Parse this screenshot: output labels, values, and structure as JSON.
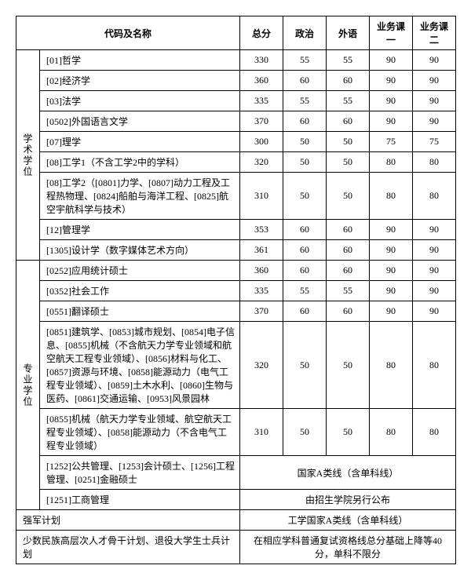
{
  "columns": {
    "code": "代码及名称",
    "total": "总分",
    "politics": "政治",
    "foreign": "外语",
    "course1": "业务课一",
    "course2": "业务课二"
  },
  "groups": {
    "academic": "学术学位",
    "professional": "专业学位"
  },
  "academic_rows": [
    {
      "code": "[01]哲学",
      "t": "330",
      "p": "55",
      "f": "55",
      "c1": "90",
      "c2": "90"
    },
    {
      "code": "[02]经济学",
      "t": "360",
      "p": "60",
      "f": "60",
      "c1": "90",
      "c2": "90"
    },
    {
      "code": "[03]法学",
      "t": "335",
      "p": "55",
      "f": "55",
      "c1": "90",
      "c2": "90"
    },
    {
      "code": "[0502]外国语言文学",
      "t": "370",
      "p": "60",
      "f": "60",
      "c1": "90",
      "c2": "90"
    },
    {
      "code": "[07]理学",
      "t": "300",
      "p": "50",
      "f": "50",
      "c1": "75",
      "c2": "75"
    },
    {
      "code": "[08]工学1（不含工学2中的学科）",
      "t": "320",
      "p": "50",
      "f": "50",
      "c1": "80",
      "c2": "80"
    },
    {
      "code": "[08]工学2（[0801]力学、[0807]动力工程及工程热物理、[0824]船舶与海洋工程、[0825]航空宇航科学与技术）",
      "t": "310",
      "p": "50",
      "f": "50",
      "c1": "80",
      "c2": "80"
    },
    {
      "code": "[12]管理学",
      "t": "353",
      "p": "60",
      "f": "60",
      "c1": "90",
      "c2": "90"
    },
    {
      "code": "[1305]设计学（数字媒体艺术方向）",
      "t": "361",
      "p": "60",
      "f": "60",
      "c1": "90",
      "c2": "90"
    }
  ],
  "professional_rows": [
    {
      "code": "[0252]应用统计硕士",
      "t": "360",
      "p": "60",
      "f": "60",
      "c1": "90",
      "c2": "90"
    },
    {
      "code": "[0352]社会工作",
      "t": "335",
      "p": "55",
      "f": "55",
      "c1": "90",
      "c2": "90"
    },
    {
      "code": "[0551]翻译硕士",
      "t": "370",
      "p": "60",
      "f": "60",
      "c1": "90",
      "c2": "90"
    },
    {
      "code": "[0851]建筑学、[0853]城市规划、[0854]电子信息、[0855]机械（不含航天力学专业领域和航空航天工程专业领域）、[0856]材料与化工、[0857]资源与环境、[0858]能源动力（电气工程专业领域）、[0859]土木水利、[0860]生物与医药、[0861]交通运输、[0953]风景园林",
      "t": "320",
      "p": "50",
      "f": "50",
      "c1": "80",
      "c2": "80"
    },
    {
      "code": "[0855]机械（航天力学专业领域、航空航天工程专业领域）、[0858]能源动力（不含电气工程专业领域）",
      "t": "310",
      "p": "50",
      "f": "50",
      "c1": "80",
      "c2": "80"
    }
  ],
  "merged_rows": [
    {
      "code": "[1252]公共管理、[1253]会计硕士、[1256]工程管理、[0251]金融硕士",
      "note": "国家A类线（含单科线）"
    },
    {
      "code": "[1251]工商管理",
      "note": "由招生学院另行公布"
    }
  ],
  "footer": [
    {
      "label": "强军计划",
      "note": "工学国家A类线（含单科线）"
    },
    {
      "label": "少数民族高层次人才骨干计划、退役大学生士兵计划",
      "note": "在相应学科普通复试资格线总分基础上降等40分，单科不限分"
    }
  ],
  "widths": {
    "group": 30,
    "code": 255,
    "t": 55,
    "p": 55,
    "f": 55,
    "c1": 55,
    "c2": 55
  }
}
